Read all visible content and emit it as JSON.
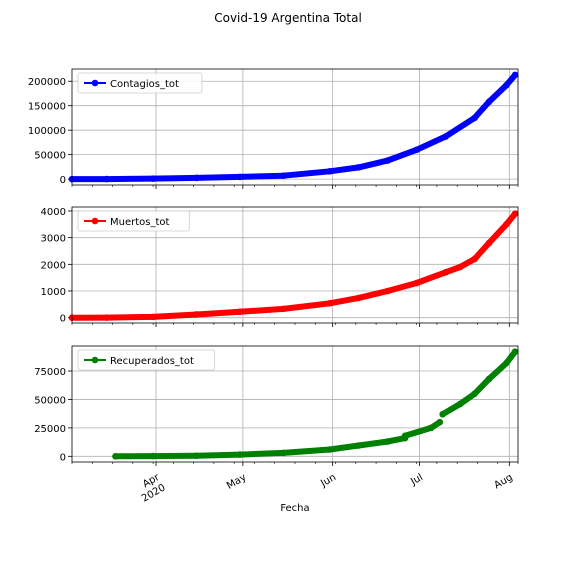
{
  "suptitle": "Covid-19 Argentina Total",
  "xlabel": "Fecha",
  "x_tick_labels": [
    {
      "date": "2020-04-01",
      "line1": "Apr",
      "line2": "2020"
    },
    {
      "date": "2020-05-01",
      "line1": "May",
      "line2": ""
    },
    {
      "date": "2020-06-01",
      "line1": "Jun",
      "line2": ""
    },
    {
      "date": "2020-07-01",
      "line1": "Jul",
      "line2": ""
    },
    {
      "date": "2020-08-01",
      "line1": "Aug",
      "line2": ""
    }
  ],
  "chart_data": [
    {
      "type": "line",
      "series": [
        {
          "name": "Contagios_tot",
          "color": "#0000ff",
          "x": [
            "2020-03-03",
            "2020-03-15",
            "2020-03-31",
            "2020-04-15",
            "2020-04-30",
            "2020-05-15",
            "2020-05-31",
            "2020-06-10",
            "2020-06-20",
            "2020-06-30",
            "2020-07-10",
            "2020-07-20",
            "2020-07-25",
            "2020-07-31",
            "2020-08-03"
          ],
          "values": [
            1,
            50,
            1000,
            2500,
            4500,
            7000,
            16000,
            24000,
            38000,
            60000,
            87000,
            125000,
            158000,
            192000,
            213000
          ]
        }
      ],
      "xlim": [
        "2020-03-03",
        "2020-08-04"
      ],
      "ylim": [
        -12000,
        225000
      ],
      "yticks": [
        0,
        50000,
        100000,
        150000,
        200000
      ],
      "ytick_labels": [
        "0",
        "50000",
        "100000",
        "150000",
        "200000"
      ],
      "grid": true,
      "legend": "upper left"
    },
    {
      "type": "line",
      "series": [
        {
          "name": "Muertos_tot",
          "color": "#ff0000",
          "x": [
            "2020-03-03",
            "2020-03-15",
            "2020-03-31",
            "2020-04-15",
            "2020-04-30",
            "2020-05-15",
            "2020-05-31",
            "2020-06-10",
            "2020-06-20",
            "2020-06-30",
            "2020-07-10",
            "2020-07-15",
            "2020-07-20",
            "2020-07-25",
            "2020-07-31",
            "2020-08-03"
          ],
          "values": [
            0,
            2,
            30,
            120,
            220,
            330,
            540,
            740,
            1000,
            1300,
            1700,
            1900,
            2200,
            2800,
            3500,
            3900
          ]
        }
      ],
      "xlim": [
        "2020-03-03",
        "2020-08-04"
      ],
      "ylim": [
        -200,
        4150
      ],
      "yticks": [
        0,
        1000,
        2000,
        3000,
        4000
      ],
      "ytick_labels": [
        "0",
        "1000",
        "2000",
        "3000",
        "4000"
      ],
      "grid": true,
      "legend": "upper left"
    },
    {
      "type": "line",
      "series": [
        {
          "name": "Recuperados_tot",
          "color": "#008000",
          "segments": [
            {
              "x": [
                "2020-03-18",
                "2020-03-31",
                "2020-04-15",
                "2020-04-30",
                "2020-05-15",
                "2020-05-31",
                "2020-06-10",
                "2020-06-20",
                "2020-06-26"
              ],
              "values": [
                0,
                200,
                500,
                1500,
                3000,
                6000,
                9500,
                13000,
                16000
              ]
            },
            {
              "x": [
                "2020-06-26",
                "2020-07-05",
                "2020-07-08"
              ],
              "values": [
                18000,
                25000,
                30000
              ]
            },
            {
              "x": [
                "2020-07-09",
                "2020-07-15",
                "2020-07-20",
                "2020-07-25",
                "2020-07-31",
                "2020-08-03"
              ],
              "values": [
                37000,
                46000,
                55000,
                68000,
                82000,
                92000
              ]
            }
          ]
        }
      ],
      "xlim": [
        "2020-03-03",
        "2020-08-04"
      ],
      "ylim": [
        -5000,
        97000
      ],
      "yticks": [
        0,
        25000,
        50000,
        75000
      ],
      "ytick_labels": [
        "0",
        "25000",
        "50000",
        "75000"
      ],
      "grid": true,
      "legend": "upper left"
    }
  ]
}
